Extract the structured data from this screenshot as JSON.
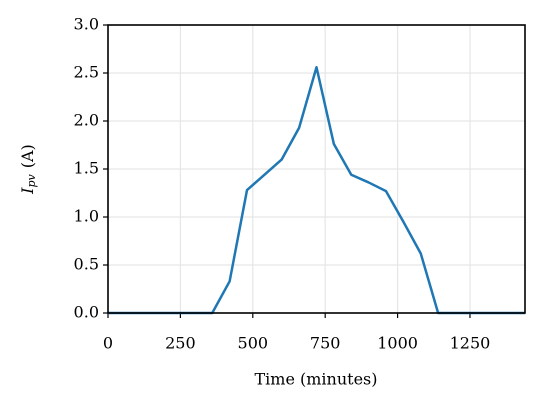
{
  "chart_data": {
    "type": "line",
    "xlabel": "Time (minutes)",
    "ylabel": {
      "symbol": "I",
      "subscript": "pv",
      "unit": "(A)"
    },
    "x": [
      0,
      60,
      120,
      180,
      240,
      300,
      360,
      420,
      480,
      540,
      600,
      660,
      720,
      780,
      840,
      900,
      960,
      1020,
      1080,
      1140,
      1200,
      1260,
      1320,
      1380,
      1440
    ],
    "series": [
      {
        "color": "#1f77b4",
        "values": [
          0,
          0,
          0,
          0,
          0,
          0,
          0,
          0.33,
          1.28,
          1.44,
          1.6,
          1.93,
          2.56,
          1.76,
          1.44,
          1.36,
          1.27,
          0.95,
          0.62,
          0,
          0,
          0,
          0,
          0,
          0
        ]
      }
    ],
    "xlim": [
      0,
      1440
    ],
    "ylim": [
      0,
      3.0
    ],
    "xticks": [
      0,
      250,
      500,
      750,
      1000,
      1250
    ],
    "yticks": [
      {
        "value": 0,
        "label": "0.0"
      },
      0.5,
      {
        "value": 1,
        "label": "1.0"
      },
      1.5,
      {
        "value": 2,
        "label": "2.0"
      },
      2.5,
      {
        "value": 3,
        "label": "3.0"
      }
    ],
    "grid": true
  }
}
